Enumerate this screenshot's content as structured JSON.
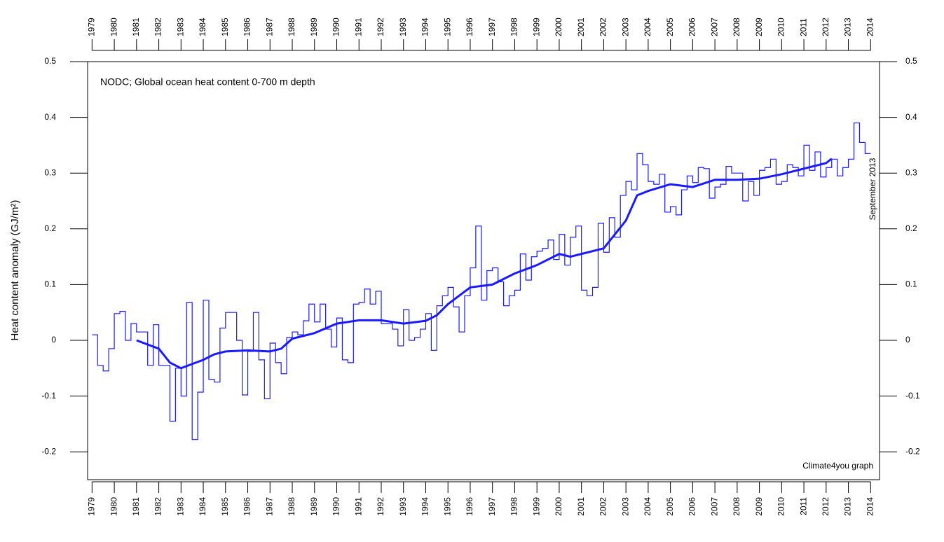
{
  "chart_data": {
    "type": "line",
    "title": "NODC; Global ocean heat content 0-700 m depth",
    "y_label": "Heat content anomaly (GJ/m²)",
    "annotations": [
      "September 2013",
      "Climate4you graph"
    ],
    "annotation_color": "#1a1aff",
    "xlim": [
      1978.8,
      2014.4
    ],
    "xticks": [
      1979,
      1980,
      1981,
      1982,
      1983,
      1984,
      1985,
      1986,
      1987,
      1988,
      1989,
      1990,
      1991,
      1992,
      1993,
      1994,
      1995,
      1996,
      1997,
      1998,
      1999,
      2000,
      2001,
      2002,
      2003,
      2004,
      2005,
      2006,
      2007,
      2008,
      2009,
      2010,
      2011,
      2012,
      2013,
      2014
    ],
    "ylim": [
      -0.25,
      0.5
    ],
    "yticks": [
      -0.2,
      -0.1,
      0,
      0.1,
      0.2,
      0.3,
      0.4,
      0.5
    ],
    "step": 0.25,
    "series": [
      {
        "color": "#1a1aff",
        "style": "step",
        "x": [
          1979,
          1979.25,
          1979.5,
          1979.75,
          1980,
          1980.25,
          1980.5,
          1980.75,
          1981,
          1981.25,
          1981.5,
          1981.75,
          1982,
          1982.25,
          1982.5,
          1982.75,
          1983,
          1983.25,
          1983.5,
          1983.75,
          1984,
          1984.25,
          1984.5,
          1984.75,
          1985,
          1985.25,
          1985.5,
          1985.75,
          1986,
          1986.25,
          1986.5,
          1986.75,
          1987,
          1987.25,
          1987.5,
          1987.75,
          1988,
          1988.25,
          1988.5,
          1988.75,
          1989,
          1989.25,
          1989.5,
          1989.75,
          1990,
          1990.25,
          1990.5,
          1990.75,
          1991,
          1991.25,
          1991.5,
          1991.75,
          1992,
          1992.25,
          1992.5,
          1992.75,
          1993,
          1993.25,
          1993.5,
          1993.75,
          1994,
          1994.25,
          1994.5,
          1994.75,
          1995,
          1995.25,
          1995.5,
          1995.75,
          1996,
          1996.25,
          1996.5,
          1996.75,
          1997,
          1997.25,
          1997.5,
          1997.75,
          1998,
          1998.25,
          1998.5,
          1998.75,
          1999,
          1999.25,
          1999.5,
          1999.75,
          2000,
          2000.25,
          2000.5,
          2000.75,
          2001,
          2001.25,
          2001.5,
          2001.75,
          2002,
          2002.25,
          2002.5,
          2002.75,
          2003,
          2003.25,
          2003.5,
          2003.75,
          2004,
          2004.25,
          2004.5,
          2004.75,
          2005,
          2005.25,
          2005.5,
          2005.75,
          2006,
          2006.25,
          2006.5,
          2006.75,
          2007,
          2007.25,
          2007.5,
          2007.75,
          2008,
          2008.25,
          2008.5,
          2008.75,
          2009,
          2009.25,
          2009.5,
          2009.75,
          2010,
          2010.25,
          2010.5,
          2010.75,
          2011,
          2011.25,
          2011.5,
          2011.75,
          2012,
          2012.25,
          2012.5,
          2012.75,
          2013,
          2013.25,
          2013.5,
          2013.75
        ],
        "values": [
          0.01,
          -0.045,
          -0.055,
          -0.015,
          0.048,
          0.052,
          0.0,
          0.03,
          0.015,
          0.015,
          -0.045,
          0.028,
          -0.045,
          -0.045,
          -0.145,
          -0.05,
          -0.1,
          0.068,
          -0.178,
          -0.093,
          0.072,
          -0.07,
          -0.075,
          0.022,
          0.05,
          0.05,
          0.0,
          -0.098,
          -0.02,
          0.05,
          -0.035,
          -0.105,
          -0.005,
          -0.04,
          -0.06,
          0.005,
          0.015,
          0.01,
          0.035,
          0.065,
          0.033,
          0.065,
          0.02,
          -0.012,
          0.04,
          -0.035,
          -0.04,
          0.065,
          0.068,
          0.092,
          0.065,
          0.088,
          0.03,
          0.03,
          0.02,
          -0.01,
          0.055,
          0.0,
          0.005,
          0.02,
          0.048,
          -0.018,
          0.062,
          0.08,
          0.095,
          0.06,
          0.015,
          0.08,
          0.13,
          0.205,
          0.072,
          0.125,
          0.13,
          0.105,
          0.062,
          0.08,
          0.09,
          0.155,
          0.108,
          0.15,
          0.16,
          0.165,
          0.18,
          0.145,
          0.19,
          0.135,
          0.185,
          0.205,
          0.09,
          0.08,
          0.095,
          0.21,
          0.158,
          0.22,
          0.185,
          0.26,
          0.285,
          0.27,
          0.335,
          0.315,
          0.285,
          0.28,
          0.298,
          0.23,
          0.24,
          0.225,
          0.27,
          0.295,
          0.283,
          0.31,
          0.308,
          0.255,
          0.275,
          0.28,
          0.312,
          0.3,
          0.3,
          0.25,
          0.285,
          0.26,
          0.305,
          0.31,
          0.325,
          0.28,
          0.285,
          0.315,
          0.31,
          0.295,
          0.35,
          0.305,
          0.338,
          0.293,
          0.31,
          0.325,
          0.295,
          0.31,
          0.325,
          0.39,
          0.355,
          0.335
        ]
      },
      {
        "color": "#1a1aff",
        "style": "line",
        "x": [
          1981,
          1982,
          1982.5,
          1983,
          1984,
          1984.5,
          1985,
          1986,
          1987,
          1987.5,
          1988,
          1989,
          1990,
          1991,
          1992,
          1993,
          1994,
          1994.5,
          1995,
          1996,
          1997,
          1998,
          1999,
          2000,
          2000.5,
          2001,
          2002,
          2003,
          2003.5,
          2004,
          2005,
          2006,
          2007,
          2008,
          2009,
          2010,
          2011,
          2012,
          2012.25
        ],
        "values": [
          0.0,
          -0.015,
          -0.04,
          -0.05,
          -0.035,
          -0.025,
          -0.02,
          -0.018,
          -0.02,
          -0.015,
          0.003,
          0.013,
          0.03,
          0.036,
          0.036,
          0.03,
          0.035,
          0.045,
          0.065,
          0.095,
          0.1,
          0.12,
          0.135,
          0.155,
          0.15,
          0.155,
          0.165,
          0.215,
          0.26,
          0.268,
          0.28,
          0.275,
          0.288,
          0.288,
          0.29,
          0.298,
          0.308,
          0.318,
          0.326
        ]
      }
    ]
  }
}
